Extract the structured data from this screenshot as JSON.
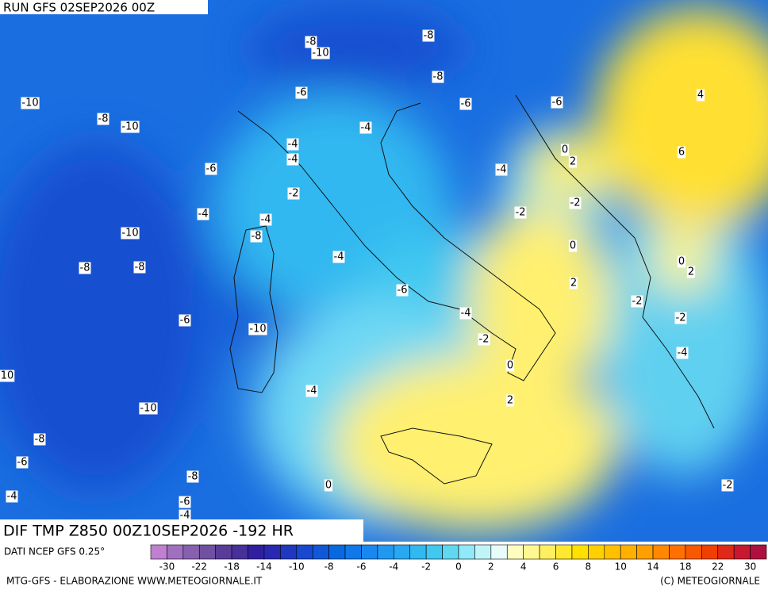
{
  "header": {
    "run": "RUN GFS 02SEP2026 00Z"
  },
  "map": {
    "title": "DIF TMP Z850 00Z10SEP2026 -192 HR",
    "source": "DATI NCEP GFS 0.25°",
    "contour_labels": [
      -8,
      -10,
      -8,
      -8,
      -6,
      -6,
      -6,
      -10,
      -8,
      -10,
      -4,
      4,
      -4,
      -4,
      0,
      2,
      6,
      -6,
      -4,
      -2,
      -2,
      -2,
      -4,
      -4,
      -8,
      -10,
      0,
      -4,
      0,
      2,
      -8,
      -8,
      2,
      -6,
      -2,
      -4,
      -6,
      -10,
      -2,
      -2,
      -4,
      0,
      10,
      -4,
      2,
      -10,
      -8,
      -6,
      -8,
      0,
      -2,
      -4,
      -6,
      -4
    ]
  },
  "colorbar": {
    "labels": [
      -30,
      -22,
      -18,
      -14,
      -10,
      -8,
      -6,
      -4,
      -2,
      0,
      2,
      4,
      6,
      8,
      10,
      14,
      18,
      22,
      30
    ],
    "colors": [
      "#c080d0",
      "#a070c0",
      "#8860b0",
      "#7050a0",
      "#583c98",
      "#48309a",
      "#3020a0",
      "#2828b0",
      "#2038c0",
      "#1848d0",
      "#1058d8",
      "#0868e0",
      "#1078e8",
      "#1888f0",
      "#2098f0",
      "#28a8f0",
      "#30b8f0",
      "#40c8f0",
      "#60d8f0",
      "#90e8f8",
      "#c0f4f8",
      "#e8fcfc",
      "#fffcc0",
      "#fff890",
      "#fff060",
      "#ffe830",
      "#ffe000",
      "#ffd000",
      "#ffc000",
      "#ffb000",
      "#ffa000",
      "#ff8800",
      "#ff7000",
      "#f85800",
      "#f04000",
      "#e02818",
      "#c81830",
      "#b01040"
    ]
  },
  "footer": {
    "left": "MTG-GFS - ELABORAZIONE WWW.METEOGIORNALE.IT",
    "right": "(C) METEOGIORNALE"
  }
}
